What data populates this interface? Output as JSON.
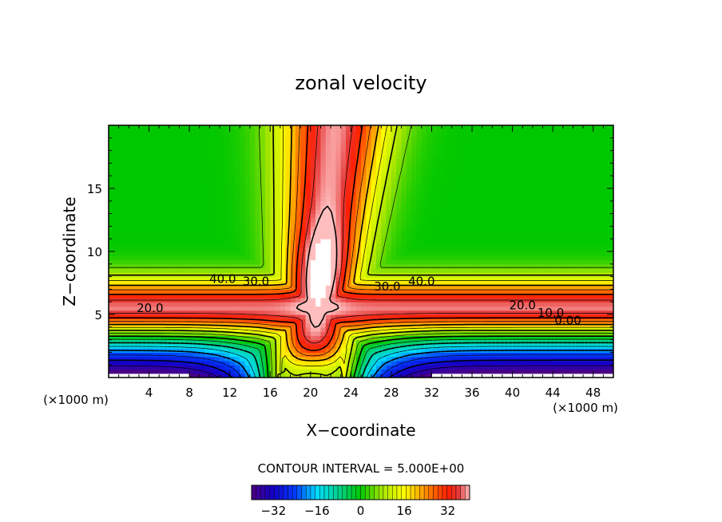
{
  "chart_data": {
    "type": "heatmap",
    "title": "zonal velocity",
    "xlabel": "X−coordinate",
    "ylabel": "Z−coordinate",
    "x_unit_left": "(×1000 m)",
    "x_unit_right": "(×1000 m)",
    "xlim": [
      0,
      50
    ],
    "ylim": [
      0,
      20
    ],
    "x_ticks": [
      4,
      8,
      12,
      16,
      20,
      24,
      28,
      32,
      36,
      40,
      44,
      48
    ],
    "y_ticks": [
      5,
      10,
      15
    ],
    "contour_labels": [
      {
        "text": "40.0",
        "x": 11.3,
        "y": 7.5
      },
      {
        "text": "30.0",
        "x": 14.6,
        "y": 7.3
      },
      {
        "text": "20.0",
        "x": 4.1,
        "y": 5.2
      },
      {
        "text": "30.0",
        "x": 27.6,
        "y": 6.9
      },
      {
        "text": "40.0",
        "x": 31.0,
        "y": 7.3
      },
      {
        "text": "20.0",
        "x": 41.0,
        "y": 5.4
      },
      {
        "text": "10.0",
        "x": 43.8,
        "y": 4.8
      },
      {
        "text": "0.00",
        "x": 45.5,
        "y": 4.2
      }
    ],
    "contour_interval_label": "CONTOUR INTERVAL = 5.000E+00",
    "colorbar": {
      "range": [
        -40,
        40
      ],
      "ticks": [
        -32,
        -16,
        0,
        16,
        32
      ]
    },
    "colors": {
      "background": "#ffffff",
      "low": "#4b0082",
      "mid": "#00c800",
      "high": "#ff2000",
      "peak": "#ffa500"
    }
  }
}
